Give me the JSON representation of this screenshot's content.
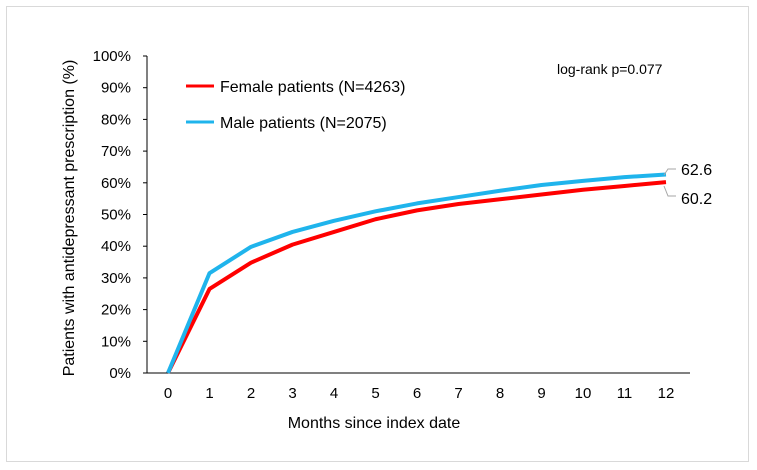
{
  "chart_data": {
    "type": "line",
    "title": "",
    "xlabel": "Months since index date",
    "ylabel": "Patients with antidepressant prescription (%)",
    "x": [
      0,
      1,
      2,
      3,
      4,
      5,
      6,
      7,
      8,
      9,
      10,
      11,
      12
    ],
    "x_tick_labels": [
      "0",
      "1",
      "2",
      "3",
      "4",
      "5",
      "6",
      "7",
      "8",
      "9",
      "10",
      "11",
      "12"
    ],
    "y_tick_labels": [
      "0%",
      "10%",
      "20%",
      "30%",
      "40%",
      "50%",
      "60%",
      "70%",
      "80%",
      "90%",
      "100%"
    ],
    "ylim": [
      0,
      100
    ],
    "grid": false,
    "legend_position": "top-left",
    "annotation": "log-rank p=0.077",
    "series": [
      {
        "name": "Female patients (N=4263)",
        "color": "#ff0000",
        "values": [
          0,
          26.5,
          34.8,
          40.5,
          44.5,
          48.5,
          51.3,
          53.3,
          54.8,
          56.3,
          57.8,
          59.0,
          60.2
        ],
        "end_label": "60.2"
      },
      {
        "name": "Male patients (N=2075)",
        "color": "#1fb4ec",
        "values": [
          0,
          31.5,
          39.8,
          44.5,
          48.0,
          51.0,
          53.5,
          55.5,
          57.5,
          59.3,
          60.6,
          61.8,
          62.6
        ],
        "end_label": "62.6"
      }
    ]
  }
}
